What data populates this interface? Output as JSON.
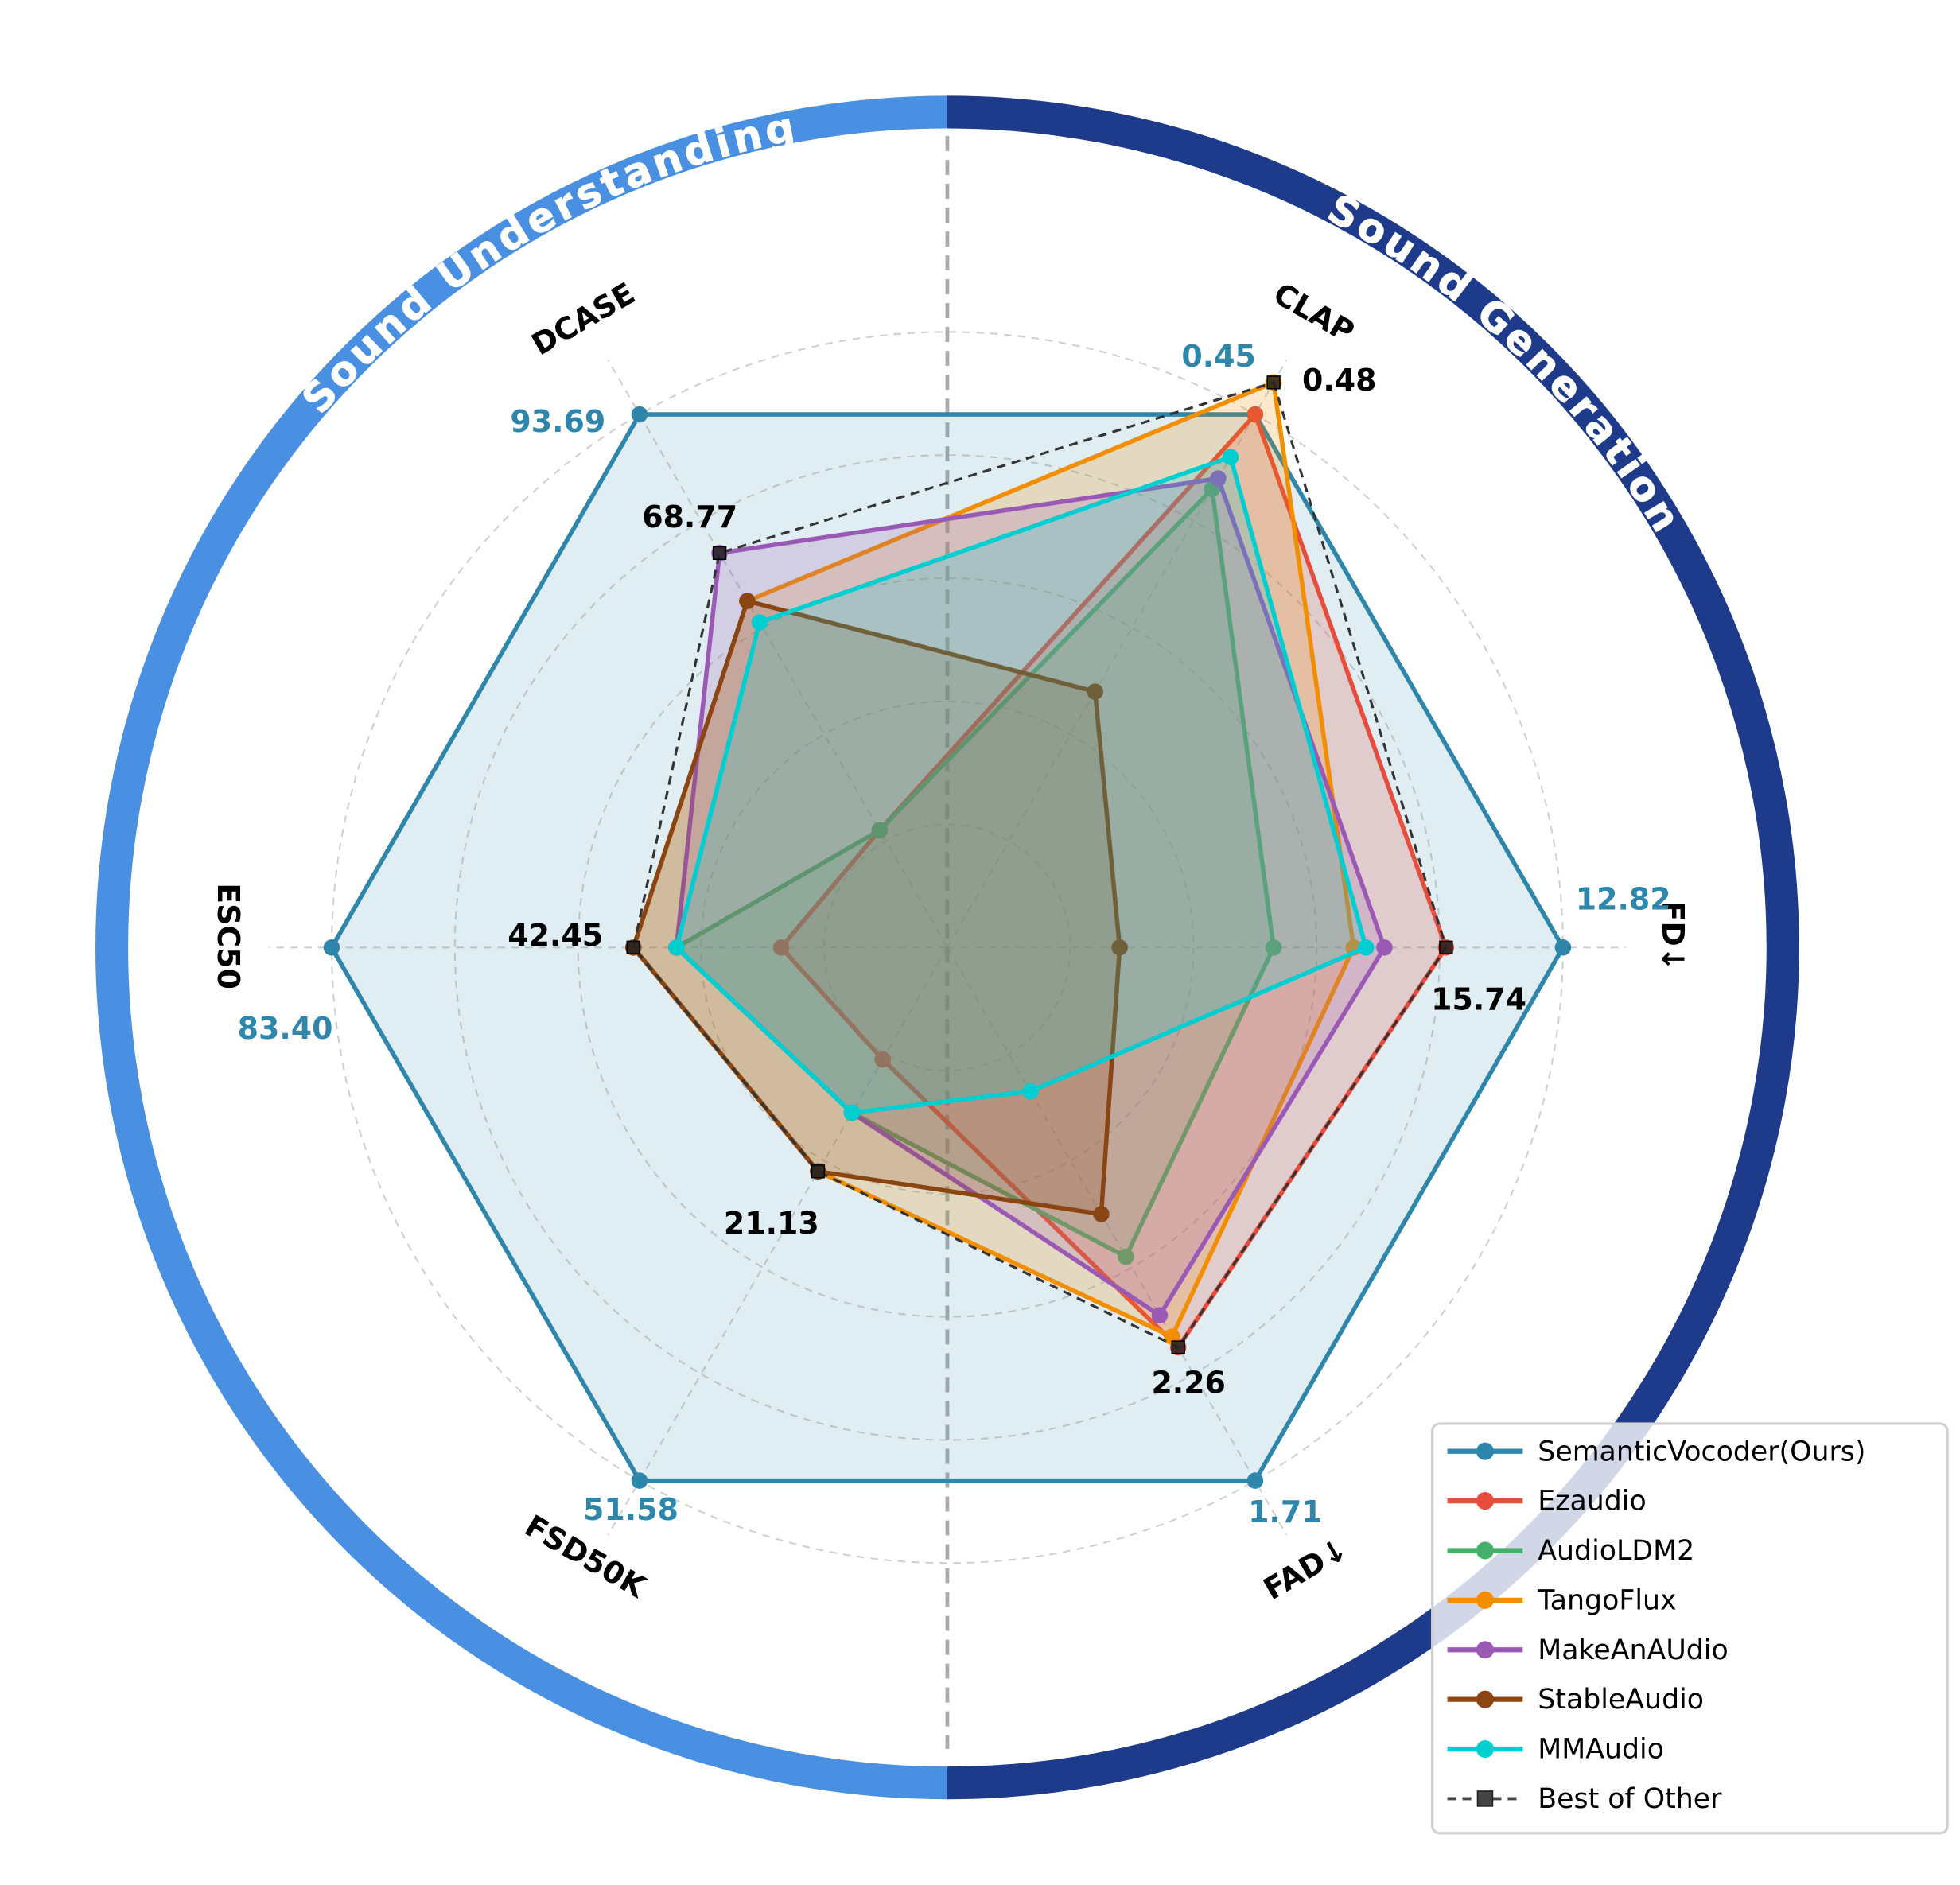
{
  "chart_data": {
    "type": "radar",
    "axes": [
      "CLAP",
      "FD↓",
      "FAD↓",
      "FSD50K",
      "ESC50",
      "DCASE"
    ],
    "axis_groups": [
      {
        "name": "Sound Generation",
        "axes": [
          "CLAP",
          "FD↓",
          "FAD↓"
        ],
        "color": "#1e3a8a"
      },
      {
        "name": "Sound Understanding",
        "axes": [
          "FSD50K",
          "ESC50",
          "DCASE"
        ],
        "color": "#4a90e2"
      }
    ],
    "value_unit": "normalized score (1.0 = SemanticVocoder)",
    "series": [
      {
        "name": "SemanticVocoder(Ours)",
        "color": "#2e86ab",
        "values": [
          1.0,
          1.0,
          1.0,
          1.0,
          1.0,
          1.0
        ]
      },
      {
        "name": "Ezaudio",
        "color": "#e74c3c",
        "values": [
          1.0,
          0.81,
          0.75,
          0.21,
          0.27,
          0.22
        ]
      },
      {
        "name": "AudioLDM2",
        "color": "#45b06c",
        "values": [
          0.86,
          0.53,
          0.58,
          0.31,
          0.44,
          0.22
        ]
      },
      {
        "name": "TangoFlux",
        "color": "#f28e00",
        "values": [
          1.06,
          0.66,
          0.73,
          0.42,
          0.51,
          0.65
        ]
      },
      {
        "name": "MakeAnAUdio",
        "color": "#9b59b6",
        "values": [
          0.88,
          0.71,
          0.69,
          0.31,
          0.44,
          0.74
        ]
      },
      {
        "name": "StableAudio",
        "color": "#8b4513",
        "values": [
          0.48,
          0.28,
          0.5,
          0.42,
          0.51,
          0.65
        ]
      },
      {
        "name": "MMAudio",
        "color": "#00ced1",
        "values": [
          0.92,
          0.68,
          0.27,
          0.31,
          0.44,
          0.61
        ]
      },
      {
        "name": "Best of Other",
        "color": "#333333",
        "dashed": true,
        "values": [
          1.06,
          0.81,
          0.75,
          0.42,
          0.51,
          0.74
        ]
      }
    ],
    "annotations": {
      "ours": [
        "0.45",
        "12.82",
        "1.71",
        "51.58",
        "83.40",
        "93.69"
      ],
      "best_other": [
        "0.48",
        "15.74",
        "2.26",
        "21.13",
        "42.45",
        "68.77"
      ]
    },
    "grid": true,
    "legend_position": "bottom-right"
  }
}
